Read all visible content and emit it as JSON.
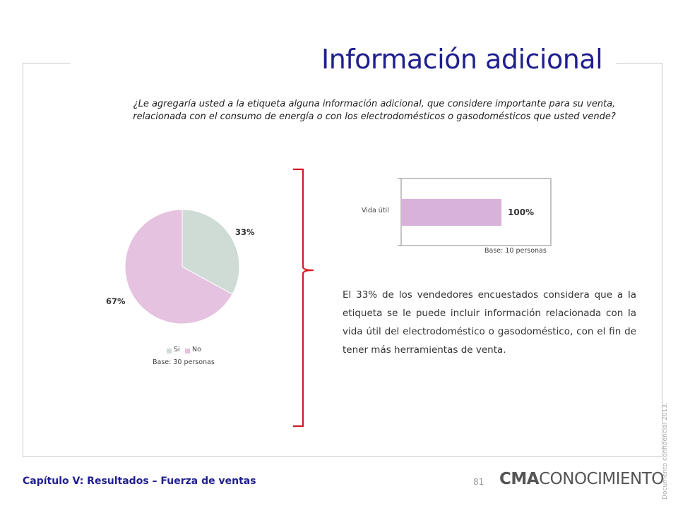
{
  "title": "Información adicional",
  "question": "¿Le agregaría usted a la etiqueta alguna información adicional, que  considere importante para su venta, relacionada con el consumo de energía o con los electrodomésticos o gasodomésticos que usted vende?",
  "chart_data": [
    {
      "type": "pie",
      "labels": [
        "Si",
        "No"
      ],
      "values": [
        33,
        67
      ],
      "data_labels": [
        "33%",
        "67%"
      ],
      "colors": [
        "#cfdcd6",
        "#e4c2e0"
      ],
      "legend": "bottom",
      "note": "Base: 30 personas"
    },
    {
      "type": "bar",
      "orientation": "horizontal",
      "categories": [
        "Vida útil"
      ],
      "values": [
        100
      ],
      "data_labels": [
        "100%"
      ],
      "xlim": [
        0,
        100
      ],
      "colors": [
        "#d8b2d8"
      ],
      "note": "Base: 10 personas"
    }
  ],
  "body_text": "El 33% de los vendedores encuestados considera que a la etiqueta se le puede incluir información relacionada con la vida útil del electrodoméstico o gasodoméstico, con el fin de tener más herramientas de venta.",
  "footer": {
    "chapter": "Capítulo V: Resultados – Fuerza de ventas",
    "page_number": "81",
    "brand_bold": "CMA",
    "brand_rest": "CONOCIMIENTO",
    "confidential": "Documento confidencial 2013."
  },
  "colors": {
    "title": "#1f1f8f",
    "brace": "#d21a26"
  }
}
